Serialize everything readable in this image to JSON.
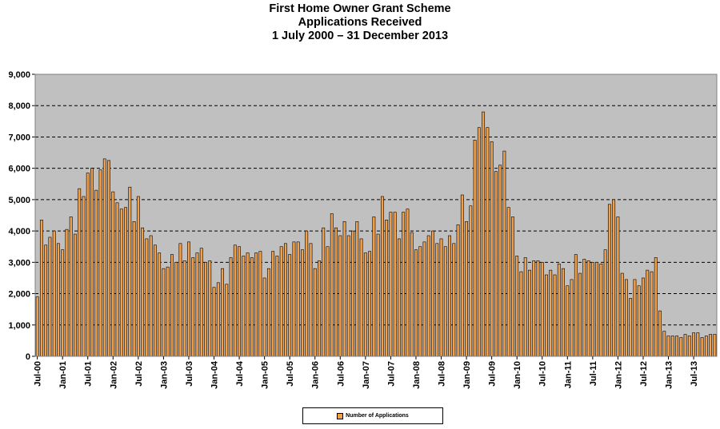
{
  "chart_data": {
    "type": "bar",
    "title": "First Home Owner Grant Scheme",
    "subtitle": "Applications Received",
    "subtitle2": "1 July 2000 – 31 December 2013",
    "xlabel": "",
    "ylabel": "",
    "ylim": [
      0,
      9000
    ],
    "yticks": [
      "0",
      "1,000",
      "2,000",
      "3,000",
      "4,000",
      "5,000",
      "6,000",
      "7,000",
      "8,000",
      "9,000"
    ],
    "x_tick_labels": [
      "Jul-00",
      "Jan-01",
      "Jul-01",
      "Jan-02",
      "Jul-02",
      "Jan-03",
      "Jul-03",
      "Jan-04",
      "Jul-04",
      "Jan-05",
      "Jul-05",
      "Jan-06",
      "Jul-06",
      "Jan-07",
      "Jul-07",
      "Jan-08",
      "Jul-08",
      "Jan-09",
      "Jul-09",
      "Jan-10",
      "Jul-10",
      "Jan-11",
      "Jul-11",
      "Jan-12",
      "Jul-12",
      "Jan-13",
      "Jul-13"
    ],
    "grid": true,
    "legend_position": "bottom",
    "series": [
      {
        "name": "Number of Applications",
        "values": [
          1900,
          4350,
          3550,
          3800,
          4000,
          3600,
          3400,
          4050,
          4450,
          3900,
          5350,
          5100,
          5850,
          6000,
          5300,
          5950,
          6300,
          6250,
          5250,
          4900,
          4700,
          4750,
          5400,
          4300,
          5100,
          4100,
          3750,
          3850,
          3550,
          3300,
          2800,
          2850,
          3250,
          3000,
          3600,
          3050,
          3650,
          3150,
          3300,
          3450,
          3000,
          3050,
          2200,
          2350,
          2800,
          2300,
          3150,
          3550,
          3500,
          3200,
          3300,
          3150,
          3300,
          3350,
          2500,
          2800,
          3350,
          3200,
          3500,
          3600,
          3250,
          3650,
          3650,
          3400,
          4000,
          3600,
          2800,
          3050,
          4100,
          3500,
          4550,
          4100,
          3850,
          4300,
          3850,
          4000,
          4300,
          3750,
          3300,
          3350,
          4450,
          3900,
          5100,
          4350,
          4600,
          4600,
          3750,
          4600,
          4700,
          3950,
          3400,
          3500,
          3650,
          3850,
          4000,
          3600,
          3750,
          3500,
          3850,
          3600,
          4200,
          5150,
          4300,
          4800,
          6900,
          7300,
          7800,
          7300,
          6850,
          5900,
          6100,
          6550,
          4750,
          4450,
          3200,
          2700,
          3150,
          2750,
          3050,
          3050,
          3000,
          2600,
          2750,
          2600,
          2950,
          2800,
          2250,
          2450,
          3250,
          2650,
          3100,
          3050,
          3000,
          3000,
          2950,
          3400,
          4850,
          5000,
          4450,
          2650,
          2450,
          1850,
          2450,
          2250,
          2500,
          2750,
          2700,
          3150,
          1450,
          800,
          650,
          650,
          650,
          600,
          700,
          650,
          750,
          750,
          600,
          650,
          700,
          700
        ]
      }
    ],
    "colors": {
      "bar_fill": "#f2a04a",
      "bar_stroke": "#000000",
      "plot_bg": "#c0c0c0",
      "grid": "#000000"
    }
  },
  "legend": {
    "label": "Number of Applications"
  }
}
